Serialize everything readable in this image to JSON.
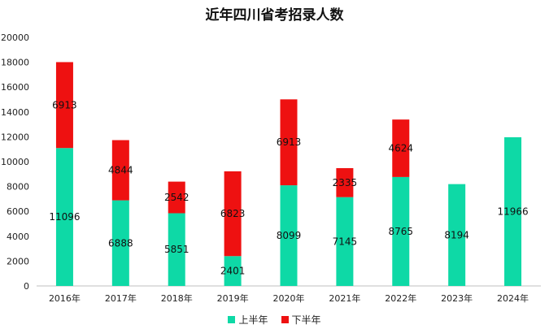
{
  "chart_data": {
    "type": "bar",
    "stacked": true,
    "title": "近年四川省考招录人数",
    "categories": [
      "2016年",
      "2017年",
      "2018年",
      "2019年",
      "2020年",
      "2021年",
      "2022年",
      "2023年",
      "2024年"
    ],
    "series": [
      {
        "name": "上半年",
        "color": "#0ED9A6",
        "values": [
          11096,
          6888,
          5851,
          2401,
          8099,
          7145,
          8765,
          8194,
          11966
        ]
      },
      {
        "name": "下半年",
        "color": "#EE1111",
        "values": [
          6913,
          4844,
          2542,
          6823,
          6913,
          2335,
          4624,
          null,
          null
        ]
      }
    ],
    "ylim": [
      0,
      20000
    ],
    "yticks": [
      0,
      2000,
      4000,
      6000,
      8000,
      10000,
      12000,
      14000,
      16000,
      18000,
      20000
    ],
    "grid": false,
    "legend_position": "bottom",
    "xlabel": "",
    "ylabel": ""
  }
}
